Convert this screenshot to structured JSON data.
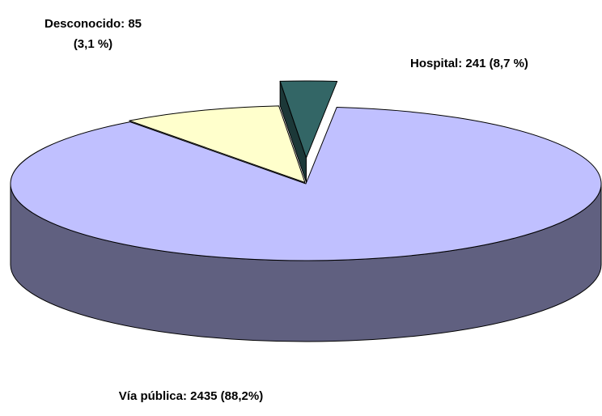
{
  "chart_data": {
    "type": "pie",
    "values": [
      85,
      241,
      2435
    ],
    "value_labels": [
      [
        "Desconocido: 85",
        "(3,1 %)"
      ],
      [
        "Hospital: 241 (8,7 %)"
      ],
      [
        "Vía pública: 2435 (88,2%)"
      ]
    ],
    "colors": [
      "#336666",
      "#ffffcc",
      "#c0c0ff"
    ]
  }
}
